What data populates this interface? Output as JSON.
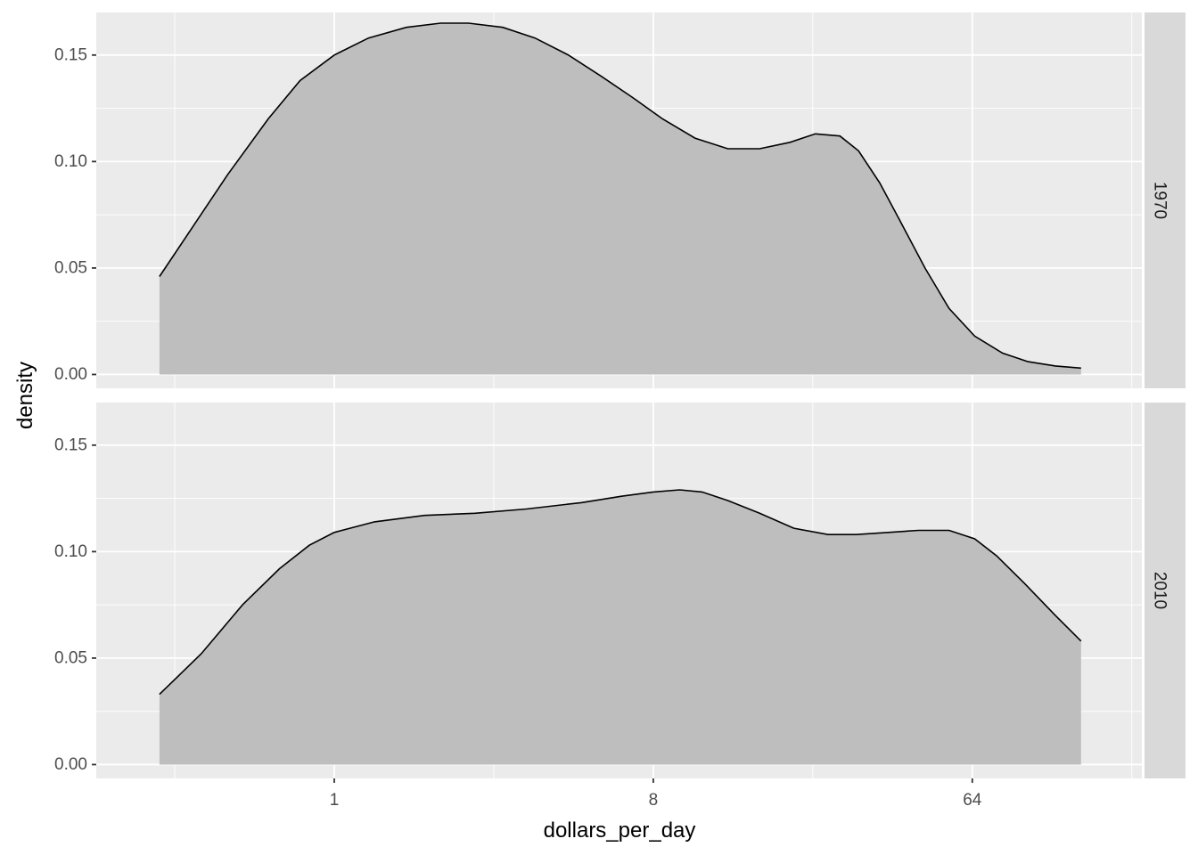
{
  "chart_data": {
    "type": "area",
    "xlabel": "dollars_per_day",
    "ylabel": "density",
    "x_scale": "log2",
    "x_ticks": [
      1,
      8,
      64
    ],
    "x_tick_labels": [
      "1",
      "8",
      "64"
    ],
    "y_ticks": [
      0,
      0.05,
      0.1,
      0.15
    ],
    "y_tick_labels": [
      "0.00",
      "0.05",
      "0.10",
      "0.15"
    ],
    "ylim": [
      -0.0065,
      0.17
    ],
    "grid": true,
    "facets": [
      {
        "label": "1970",
        "x": [
          0.32,
          0.4,
          0.5,
          0.65,
          0.8,
          1.0,
          1.25,
          1.6,
          2.0,
          2.4,
          3.0,
          3.7,
          4.6,
          5.7,
          7.0,
          8.5,
          10.5,
          13,
          16,
          19.5,
          23,
          27,
          30.5,
          35,
          40,
          47,
          55,
          65,
          78,
          92,
          110,
          130
        ],
        "y": [
          0.046,
          0.07,
          0.094,
          0.12,
          0.138,
          0.15,
          0.158,
          0.163,
          0.165,
          0.165,
          0.163,
          0.158,
          0.15,
          0.14,
          0.13,
          0.12,
          0.111,
          0.106,
          0.106,
          0.109,
          0.113,
          0.112,
          0.105,
          0.09,
          0.072,
          0.05,
          0.031,
          0.018,
          0.01,
          0.006,
          0.004,
          0.003
        ]
      },
      {
        "label": "2010",
        "x": [
          0.32,
          0.42,
          0.55,
          0.7,
          0.85,
          1.0,
          1.3,
          1.8,
          2.5,
          3.5,
          5.0,
          6.5,
          8.0,
          9.5,
          11,
          13,
          16,
          20,
          25,
          30,
          37,
          45,
          55,
          65,
          75,
          90,
          110,
          130
        ],
        "y": [
          0.033,
          0.052,
          0.075,
          0.092,
          0.103,
          0.109,
          0.114,
          0.117,
          0.118,
          0.12,
          0.123,
          0.126,
          0.128,
          0.129,
          0.128,
          0.124,
          0.118,
          0.111,
          0.108,
          0.108,
          0.109,
          0.11,
          0.11,
          0.106,
          0.098,
          0.085,
          0.07,
          0.058
        ]
      }
    ]
  }
}
